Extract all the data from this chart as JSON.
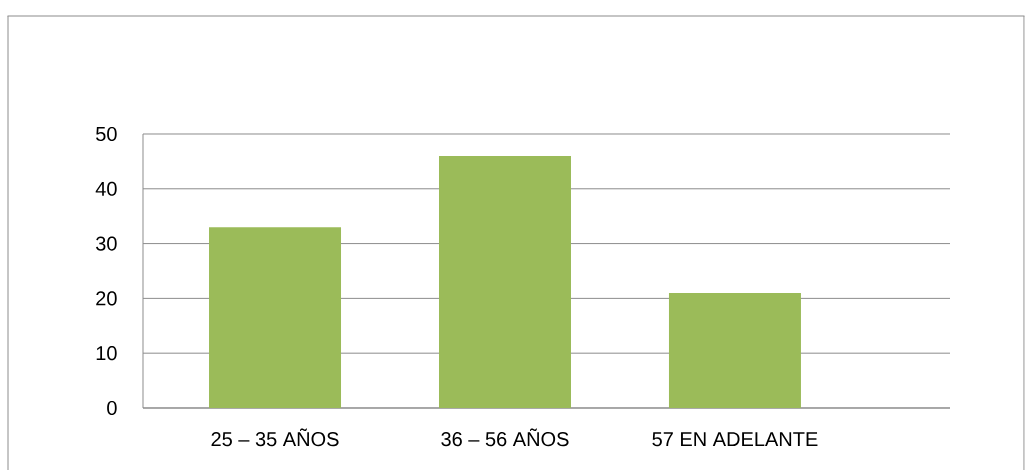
{
  "chart_data": {
    "type": "bar",
    "categories": [
      "25 – 35 AÑOS",
      "36 – 56 AÑOS",
      "57 EN ADELANTE"
    ],
    "values": [
      33,
      46,
      21
    ],
    "color": "#9bbb59",
    "ylim": [
      0,
      50
    ],
    "yticks": [
      0,
      10,
      20,
      30,
      40,
      50
    ],
    "grid": "y"
  }
}
